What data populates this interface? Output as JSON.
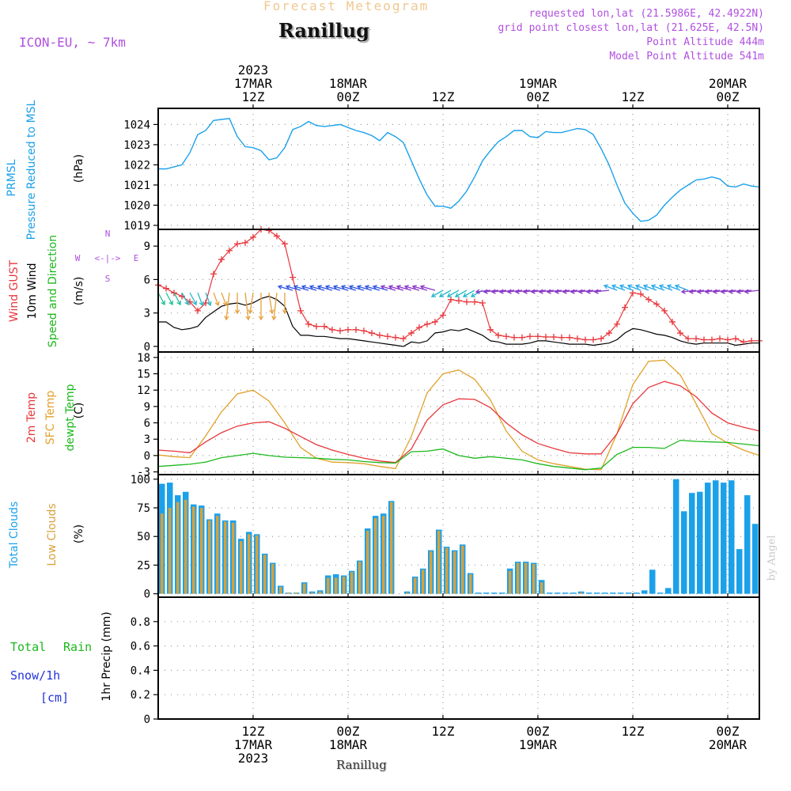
{
  "header": {
    "subtitle": "Forecast Meteogram",
    "title": "Ranillug",
    "model": "ICON-EU, ~ 7km",
    "requested": "requested lon,lat (21.5986E, 42.4922N)",
    "grid_point": "grid point closest lon,lat (21.625E, 42.5N)",
    "point_altitude": "Point Altitude 444m",
    "model_altitude": "Model Point Altitude 541m",
    "footer_title": "Ranillug",
    "credit": "by Angel",
    "compass": {
      "n": "N",
      "s": "S",
      "w": "W",
      "e": "E",
      "arrows": "<-|->"
    }
  },
  "colors": {
    "pressure": "#1ba1ea",
    "gust": "#e8373c",
    "wind": "#000000",
    "dir": "#1cb81c",
    "temp2m": "#e8373c",
    "sfc": "#e1a12a",
    "dewpt": "#1cb81c",
    "total_clouds": "#1ba1ea",
    "low_clouds": "#d7a13c",
    "rain": "#1cb81c",
    "snow": "#2233dd",
    "header_purple": "#b050e0",
    "header_orange": "#f0c080"
  },
  "time_axis": {
    "top_labels": [
      {
        "t": 12,
        "lines": [
          "2023",
          "17MAR",
          "12Z"
        ]
      },
      {
        "t": 24,
        "lines": [
          "18MAR",
          "00Z"
        ]
      },
      {
        "t": 36,
        "lines": [
          "12Z"
        ]
      },
      {
        "t": 48,
        "lines": [
          "19MAR",
          "00Z"
        ]
      },
      {
        "t": 60,
        "lines": [
          "12Z"
        ]
      },
      {
        "t": 72,
        "lines": [
          "20MAR",
          "00Z"
        ]
      }
    ],
    "bottom_labels": [
      {
        "t": 12,
        "lines": [
          "12Z",
          "17MAR",
          "2023"
        ]
      },
      {
        "t": 24,
        "lines": [
          "00Z",
          "18MAR"
        ]
      },
      {
        "t": 36,
        "lines": [
          "12Z"
        ]
      },
      {
        "t": 48,
        "lines": [
          "00Z",
          "19MAR"
        ]
      },
      {
        "t": 60,
        "lines": [
          "12Z"
        ]
      },
      {
        "t": 72,
        "lines": [
          "00Z",
          "20MAR"
        ]
      }
    ],
    "start_hour": 0,
    "end_hour": 76
  },
  "panel_labels": {
    "pressure": [
      "PRMSL",
      "Pressure Reduced to MSL",
      "(hPa)"
    ],
    "wind": [
      "Wind GUST",
      "10m Wind",
      "Speed and Direction",
      "(m/s)"
    ],
    "temp": [
      "2m Temp",
      "SFC Temp",
      "dewpt Temp",
      "(C)"
    ],
    "clouds": [
      "Total Clouds",
      "Low Clouds",
      "(%)"
    ],
    "precip": {
      "total": "Total",
      "rain": "Rain",
      "snow": "Snow/1h",
      "cm": "[cm]",
      "axis": "1hr Precip (mm)"
    }
  },
  "chart_data": [
    {
      "type": "line",
      "title": "PRMSL Pressure Reduced to MSL",
      "ylabel": "(hPa)",
      "ylim": [
        1018.8,
        1024.8
      ],
      "yticks": [
        "1019",
        "1020",
        "1021",
        "1022",
        "1023",
        "1024"
      ],
      "x": [
        0,
        1,
        2,
        3,
        4,
        5,
        6,
        7,
        8,
        9,
        10,
        11,
        12,
        13,
        14,
        15,
        16,
        17,
        18,
        19,
        20,
        21,
        22,
        23,
        24,
        25,
        26,
        27,
        28,
        29,
        30,
        31,
        32,
        33,
        34,
        35,
        36,
        37,
        38,
        39,
        40,
        41,
        42,
        43,
        44,
        45,
        46,
        47,
        48,
        49,
        50,
        51,
        52,
        53,
        54,
        55,
        56,
        57,
        58,
        59,
        60,
        61,
        62,
        63,
        64,
        65,
        66,
        67,
        68,
        69,
        70,
        71,
        72,
        73,
        74,
        75,
        76
      ],
      "series": [
        {
          "name": "PRMSL",
          "values": [
            1021.8,
            1021.8,
            1021.9,
            1022.0,
            1022.6,
            1023.5,
            1023.7,
            1024.2,
            1024.25,
            1024.3,
            1023.4,
            1022.9,
            1022.85,
            1022.7,
            1022.25,
            1022.35,
            1022.85,
            1023.75,
            1023.9,
            1024.15,
            1023.95,
            1023.9,
            1023.95,
            1024.0,
            1023.85,
            1023.7,
            1023.6,
            1023.45,
            1023.2,
            1023.6,
            1023.4,
            1023.1,
            1022.2,
            1021.3,
            1020.5,
            1019.95,
            1019.95,
            1019.85,
            1020.2,
            1020.7,
            1021.4,
            1022.2,
            1022.7,
            1023.15,
            1023.4,
            1023.7,
            1023.7,
            1023.4,
            1023.35,
            1023.65,
            1023.6,
            1023.6,
            1023.7,
            1023.8,
            1023.75,
            1023.5,
            1022.8,
            1022.0,
            1021.0,
            1020.1,
            1019.6,
            1019.2,
            1019.25,
            1019.5,
            1020.0,
            1020.4,
            1020.75,
            1021.0,
            1021.25,
            1021.3,
            1021.4,
            1021.3,
            1020.95,
            1020.9,
            1021.05,
            1020.95,
            1020.9
          ]
        }
      ]
    },
    {
      "type": "line",
      "title": "Wind GUST / 10m Wind Speed and Direction",
      "ylabel": "(m/s)",
      "ylim": [
        -0.5,
        10.5
      ],
      "yticks": [
        "0",
        "3",
        "6",
        "9"
      ],
      "x": [
        0,
        1,
        2,
        3,
        4,
        5,
        6,
        7,
        8,
        9,
        10,
        11,
        12,
        13,
        14,
        15,
        16,
        17,
        18,
        19,
        20,
        21,
        22,
        23,
        24,
        25,
        26,
        27,
        28,
        29,
        30,
        31,
        32,
        33,
        34,
        35,
        36,
        37,
        38,
        39,
        40,
        41,
        42,
        43,
        44,
        45,
        46,
        47,
        48,
        49,
        50,
        51,
        52,
        53,
        54,
        55,
        56,
        57,
        58,
        59,
        60,
        61,
        62,
        63,
        64,
        65,
        66,
        67,
        68,
        69,
        70,
        71,
        72,
        73,
        74,
        75,
        76
      ],
      "series": [
        {
          "name": "Wind GUST",
          "values": [
            5.5,
            5.2,
            4.8,
            4.5,
            4.0,
            3.2,
            3.9,
            6.5,
            7.8,
            8.6,
            9.2,
            9.3,
            9.8,
            10.5,
            10.4,
            9.9,
            9.2,
            6.2,
            3.2,
            2.0,
            1.8,
            1.8,
            1.5,
            1.4,
            1.5,
            1.5,
            1.4,
            1.2,
            1.0,
            0.9,
            0.8,
            0.7,
            1.2,
            1.7,
            2.0,
            2.2,
            2.8,
            4.2,
            4.1,
            4.0,
            4.0,
            3.9,
            1.5,
            1.0,
            0.9,
            0.8,
            0.8,
            0.9,
            0.9,
            0.85,
            0.85,
            0.8,
            0.8,
            0.7,
            0.6,
            0.6,
            0.7,
            1.2,
            2.0,
            3.5,
            4.8,
            4.7,
            4.2,
            3.8,
            3.2,
            2.2,
            1.2,
            0.7,
            0.7,
            0.6,
            0.6,
            0.7,
            0.6,
            0.7,
            0.4,
            0.5,
            0.5
          ]
        },
        {
          "name": "10m Wind",
          "values": [
            2.2,
            2.2,
            1.7,
            1.5,
            1.6,
            1.8,
            2.6,
            3.1,
            3.6,
            3.8,
            3.9,
            3.7,
            3.9,
            4.3,
            4.5,
            4.2,
            3.6,
            1.8,
            1.0,
            1.0,
            0.9,
            0.9,
            0.8,
            0.7,
            0.7,
            0.6,
            0.5,
            0.4,
            0.3,
            0.2,
            0.1,
            0.0,
            0.4,
            0.3,
            0.5,
            1.2,
            1.3,
            1.5,
            1.4,
            1.6,
            1.3,
            1.0,
            0.5,
            0.4,
            0.2,
            0.2,
            0.2,
            0.3,
            0.5,
            0.5,
            0.4,
            0.3,
            0.2,
            0.2,
            0.2,
            0.1,
            0.2,
            0.3,
            0.6,
            1.2,
            1.6,
            1.5,
            1.3,
            1.1,
            1.0,
            0.8,
            0.5,
            0.3,
            0.2,
            0.3,
            0.3,
            0.3,
            0.3,
            0.1,
            0.2,
            0.3,
            0.3
          ]
        }
      ]
    },
    {
      "type": "line",
      "title": "2m Temp / SFC Temp / dewpt Temp",
      "ylabel": "(C)",
      "ylim": [
        -3.5,
        19
      ],
      "yticks": [
        "-3",
        "0",
        "3",
        "6",
        "9",
        "12",
        "15",
        "18"
      ],
      "x": [
        0,
        2,
        4,
        6,
        8,
        10,
        12,
        14,
        16,
        18,
        20,
        22,
        24,
        26,
        28,
        30,
        32,
        34,
        36,
        38,
        40,
        42,
        44,
        46,
        48,
        50,
        52,
        54,
        56,
        58,
        60,
        62,
        64,
        66,
        68,
        70,
        72,
        74,
        76
      ],
      "series": [
        {
          "name": "2m Temp",
          "values": [
            1.0,
            0.8,
            0.5,
            2.5,
            4.2,
            5.4,
            6.0,
            6.2,
            5.0,
            3.5,
            2.0,
            1.0,
            0.2,
            -0.5,
            -1.0,
            -1.3,
            1.2,
            6.5,
            9.3,
            10.4,
            10.3,
            8.8,
            6.0,
            3.8,
            2.2,
            1.3,
            0.5,
            0.3,
            0.3,
            4.0,
            9.5,
            12.5,
            13.6,
            12.8,
            10.8,
            7.8,
            6.0,
            5.2,
            4.5
          ]
        },
        {
          "name": "SFC Temp",
          "values": [
            0.1,
            -0.2,
            -0.4,
            3.6,
            8.0,
            11.3,
            12.0,
            10.0,
            6.0,
            1.5,
            -0.5,
            -1.2,
            -1.3,
            -1.5,
            -2.0,
            -2.4,
            3.5,
            11.5,
            15.0,
            15.7,
            14.0,
            10.2,
            4.5,
            0.8,
            -0.8,
            -1.5,
            -2.0,
            -2.5,
            -2.6,
            4.0,
            13.0,
            17.3,
            17.5,
            14.8,
            9.5,
            4.0,
            2.3,
            1.0,
            0.0
          ]
        },
        {
          "name": "dewpt Temp",
          "values": [
            -2.0,
            -1.8,
            -1.6,
            -1.2,
            -0.4,
            0.0,
            0.4,
            0.0,
            -0.3,
            -0.4,
            -0.5,
            -0.7,
            -0.8,
            -1.1,
            -1.3,
            -1.4,
            0.7,
            0.8,
            1.2,
            0.0,
            -0.5,
            -0.2,
            -0.5,
            -0.8,
            -1.5,
            -2.0,
            -2.3,
            -2.6,
            -2.3,
            0.2,
            1.5,
            1.5,
            1.3,
            2.8,
            2.6,
            2.5,
            2.4,
            2.1,
            1.8
          ]
        }
      ]
    },
    {
      "type": "bar",
      "title": "Total Clouds / Low Clouds",
      "ylabel": "(%)",
      "ylim": [
        -3,
        104
      ],
      "yticks": [
        "0",
        "25",
        "50",
        "75",
        "100"
      ],
      "x": [
        0,
        1,
        2,
        3,
        4,
        5,
        6,
        7,
        8,
        9,
        10,
        11,
        12,
        13,
        14,
        15,
        16,
        17,
        18,
        19,
        20,
        21,
        22,
        23,
        24,
        25,
        26,
        27,
        28,
        29,
        30,
        31,
        32,
        33,
        34,
        35,
        36,
        37,
        38,
        39,
        40,
        41,
        42,
        43,
        44,
        45,
        46,
        47,
        48,
        49,
        50,
        51,
        52,
        53,
        54,
        55,
        56,
        57,
        58,
        59,
        60,
        61,
        62,
        63,
        64,
        65,
        66,
        67,
        68,
        69,
        70,
        71,
        72,
        73,
        74,
        75,
        76
      ],
      "series": [
        {
          "name": "Total Clouds",
          "values": [
            96,
            97,
            86,
            89,
            78,
            77,
            65,
            70,
            64,
            64,
            48,
            54,
            52,
            35,
            27,
            7,
            1,
            1,
            10,
            2,
            3,
            16,
            17,
            16,
            20,
            29,
            57,
            68,
            70,
            81,
            0,
            2,
            15,
            22,
            38,
            56,
            41,
            38,
            43,
            18,
            1,
            1,
            1,
            1,
            22,
            28,
            28,
            27,
            12,
            1,
            1,
            1,
            1,
            2,
            1,
            1,
            1,
            1,
            1,
            1,
            1,
            3,
            21,
            1,
            5,
            100,
            72,
            88,
            89,
            97,
            99,
            97,
            99,
            39,
            86,
            61,
            0
          ]
        },
        {
          "name": "Low Clouds",
          "values": [
            70,
            75,
            80,
            82,
            76,
            75,
            64,
            68,
            63,
            62,
            46,
            52,
            51,
            34,
            26,
            6,
            1,
            1,
            9,
            1,
            2,
            14,
            14,
            15,
            19,
            28,
            55,
            66,
            68,
            80,
            0,
            1,
            14,
            21,
            37,
            55,
            40,
            37,
            42,
            17,
            0,
            0,
            0,
            0,
            20,
            27,
            27,
            26,
            10,
            0,
            0,
            0,
            0,
            1,
            0,
            0,
            0,
            0,
            0,
            0,
            0,
            0,
            0,
            0,
            0,
            0,
            0,
            0,
            0,
            0,
            0,
            0,
            0,
            0,
            0,
            0,
            0
          ]
        }
      ]
    },
    {
      "type": "bar",
      "title": "1hr Precip",
      "ylabel": "1hr Precip (mm)",
      "ylim": [
        0,
        1.0
      ],
      "yticks": [
        "0",
        "0.2",
        "0.4",
        "0.6",
        "0.8"
      ],
      "series": [
        {
          "name": "Total Rain",
          "values": []
        },
        {
          "name": "Snow/1h",
          "values": []
        }
      ]
    }
  ]
}
